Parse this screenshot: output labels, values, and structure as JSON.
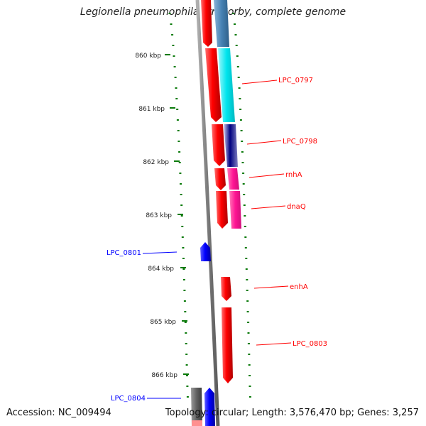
{
  "title": "Legionella pneumophila str. Corby, complete genome",
  "footer": {
    "accession": "Accession: NC_009494",
    "summary": "Topology: circular; Length: 3,576,470 bp; Genes: 3,257"
  },
  "scale": {
    "ticks": [
      "860 kbp",
      "861 kbp",
      "862 kbp",
      "863 kbp",
      "864 kbp",
      "865 kbp",
      "866 kbp"
    ]
  },
  "colors": {
    "forward_gene": "#ff0000",
    "reverse_gene": "#0000ff",
    "backbone": "#808080",
    "tick": "#0a7a0a",
    "cyan": "#00e5ee",
    "steelblue": "#4682b4",
    "navy": "#000080",
    "pink": "#ff1493",
    "gray": "#606060"
  },
  "genes": [
    {
      "label": "LPC_0797",
      "color": "#ff0000",
      "strand": "forward"
    },
    {
      "label": "LPC_0798",
      "color": "#ff0000",
      "strand": "forward"
    },
    {
      "label": "rnhA",
      "color": "#ff0000",
      "strand": "forward"
    },
    {
      "label": "dnaQ",
      "color": "#ff0000",
      "strand": "forward"
    },
    {
      "label": "LPC_0801",
      "color": "#0000ff",
      "strand": "reverse"
    },
    {
      "label": "enhA",
      "color": "#ff0000",
      "strand": "forward"
    },
    {
      "label": "LPC_0803",
      "color": "#ff0000",
      "strand": "forward"
    },
    {
      "label": "LPC_0804",
      "color": "#0000ff",
      "strand": "reverse"
    }
  ]
}
